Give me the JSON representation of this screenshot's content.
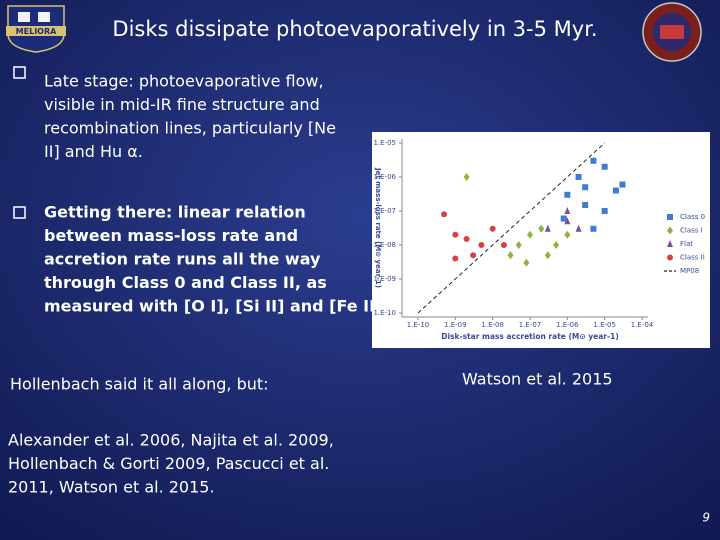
{
  "header": {
    "title": "Disks dissipate photoevaporatively in 3-5 Myr.",
    "logo_text": "MELIORA"
  },
  "bullets": [
    {
      "lines": [
        "Late stage: photoevaporative flow,",
        "visible in mid-IR fine structure and",
        "recombination lines, particularly [Ne",
        "II] and Hu α."
      ]
    },
    {
      "lines": [
        "Getting there: linear relation",
        "between mass-loss rate and",
        "accretion rate runs all the way",
        "through Class 0 and Class II, as",
        "measured with [O I], [Si II] and [Fe II]."
      ]
    }
  ],
  "note": "Hollenbach said it all along, but:",
  "caption": "Watson et al. 2015",
  "references": {
    "lines": [
      "Alexander et al. 2006, Najita et al. 2009,",
      "Hollenbach & Gorti 2009, Pascucci et al.",
      "2011, Watson et al. 2015."
    ]
  },
  "page_number": "9",
  "chart_data": {
    "type": "scatter",
    "xlabel": "Disk-star mass accretion rate (M⊙ year-1)",
    "ylabel": "Jet mass-loss rate (M⊙ year-1)",
    "log_x": true,
    "log_y": true,
    "xlim": [
      1e-10,
      0.0001
    ],
    "ylim": [
      1e-10,
      1e-05
    ],
    "xticks": [
      {
        "value": 1e-10,
        "label": "1.E-10"
      },
      {
        "value": 1e-09,
        "label": "1.E-09"
      },
      {
        "value": 1e-08,
        "label": "1.E-08"
      },
      {
        "value": 1e-07,
        "label": "1.E-07"
      },
      {
        "value": 1e-06,
        "label": "1.E-06"
      },
      {
        "value": 1e-05,
        "label": "1.E-05"
      },
      {
        "value": 0.0001,
        "label": "1.E-04"
      }
    ],
    "yticks": [
      {
        "value": 1e-10,
        "label": "1.E-10"
      },
      {
        "value": 1e-09,
        "label": "1.E-09"
      },
      {
        "value": 1e-08,
        "label": "1.E-08"
      },
      {
        "value": 1e-07,
        "label": "1.E-07"
      },
      {
        "value": 1e-06,
        "label": "1.E-06"
      },
      {
        "value": 1e-05,
        "label": "1.E-05"
      }
    ],
    "series": [
      {
        "name": "Class 0",
        "color": "#3f7bd0",
        "marker": "square",
        "x": [
          1e-06,
          2e-06,
          3e-06,
          5e-06,
          1e-05,
          3e-06,
          8e-07,
          2e-05,
          1e-05,
          5e-06,
          3e-05
        ],
        "values": [
          3e-07,
          1e-06,
          5e-07,
          3e-06,
          2e-06,
          1.5e-07,
          6e-08,
          4e-07,
          1e-07,
          3e-08,
          6e-07
        ]
      },
      {
        "name": "Class I",
        "color": "#8db43c",
        "marker": "diamond",
        "x": [
          2e-09,
          3e-08,
          5e-08,
          1e-07,
          2e-07,
          5e-07,
          1e-06,
          3e-07,
          8e-08
        ],
        "values": [
          1e-06,
          5e-09,
          1e-08,
          2e-08,
          3e-08,
          1e-08,
          2e-08,
          5e-09,
          3e-09
        ]
      },
      {
        "name": "Flat",
        "color": "#7a4fa0",
        "marker": "triangle",
        "x": [
          1e-06,
          3e-07,
          2e-06,
          1e-06
        ],
        "values": [
          1e-07,
          3e-08,
          3e-08,
          5e-08
        ]
      },
      {
        "name": "Class II",
        "color": "#d94040",
        "marker": "circle",
        "x": [
          5e-10,
          1e-09,
          2e-09,
          1e-09,
          3e-09,
          5e-09,
          1e-08,
          2e-08
        ],
        "values": [
          8e-08,
          2e-08,
          1.5e-08,
          4e-09,
          5e-09,
          1e-08,
          3e-08,
          1e-08
        ]
      },
      {
        "name": "MP08",
        "color": "#222222",
        "marker": "line",
        "x": [
          1e-10,
          1e-05
        ],
        "values": [
          1e-10,
          1e-05
        ]
      }
    ]
  }
}
